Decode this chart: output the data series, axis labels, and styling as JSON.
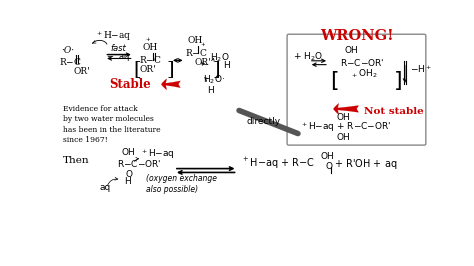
{
  "bg_color": "#ffffff",
  "wrong_text": "WRONG!",
  "wrong_color": "#cc0000",
  "stable_text": "Stable",
  "stable_color": "#cc0000",
  "not_stable_text": "Not stable",
  "not_stable_color": "#cc0000",
  "evidence_text": "Evidence for attack\nby two water molecules\nhas been in the literature\nsince 1967!",
  "then_text": "Then",
  "directly_text": "directly",
  "oxygen_exchange_text": "(oxygen exchange\nalso possible)"
}
